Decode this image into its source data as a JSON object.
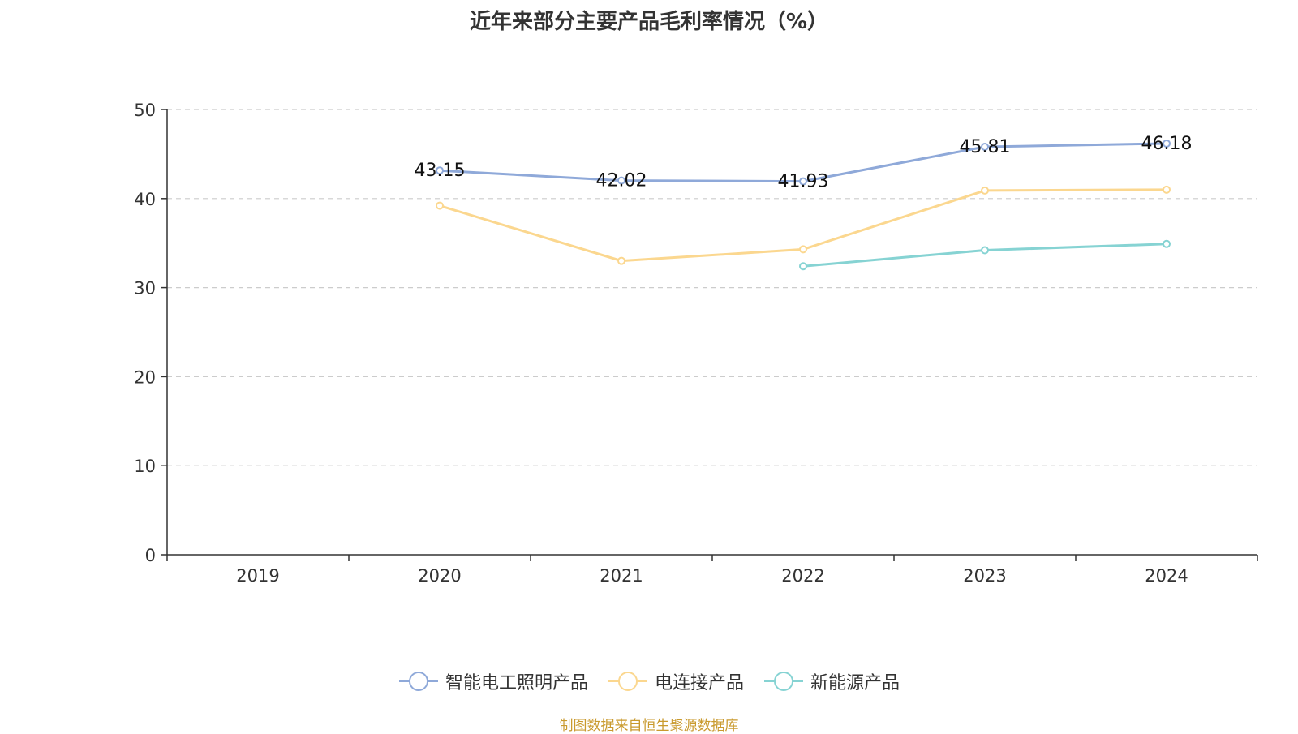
{
  "chart_data": {
    "type": "line",
    "title": "近年来部分主要产品毛利率情况（%）",
    "categories": [
      "2019",
      "2020",
      "2021",
      "2022",
      "2023",
      "2024"
    ],
    "ylim": [
      0,
      50
    ],
    "yticks": [
      0,
      10,
      20,
      30,
      40,
      50
    ],
    "grid": true,
    "legend_position": "bottom",
    "series": [
      {
        "name": "智能电工照明产品",
        "color": "#8fa9d9",
        "values": [
          null,
          43.15,
          42.02,
          41.93,
          45.81,
          46.18
        ],
        "labels": [
          null,
          "43.15",
          "42.02",
          "41.93",
          "45.81",
          "46.18"
        ]
      },
      {
        "name": "电连接产品",
        "color": "#fbd78f",
        "values": [
          null,
          39.2,
          33.0,
          34.3,
          40.9,
          41.0
        ]
      },
      {
        "name": "新能源产品",
        "color": "#86d3d3",
        "values": [
          null,
          null,
          null,
          32.4,
          34.2,
          34.9
        ]
      }
    ]
  },
  "source": "制图数据来自恒生聚源数据库"
}
